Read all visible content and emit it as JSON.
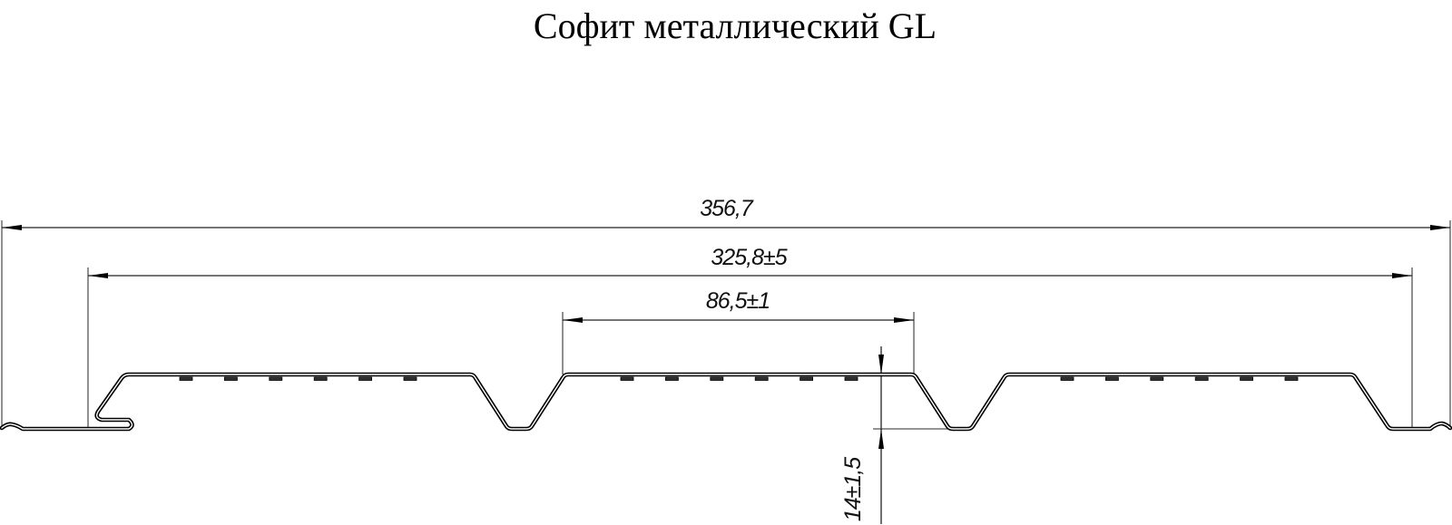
{
  "title": "Софит металлический GL",
  "dimensions": {
    "overall_width": "356,7",
    "working_width": "325,8±5",
    "flat_width": "86,5±1",
    "profile_height": "14±1,5"
  },
  "colors": {
    "line": "#000000",
    "background": "#ffffff"
  }
}
